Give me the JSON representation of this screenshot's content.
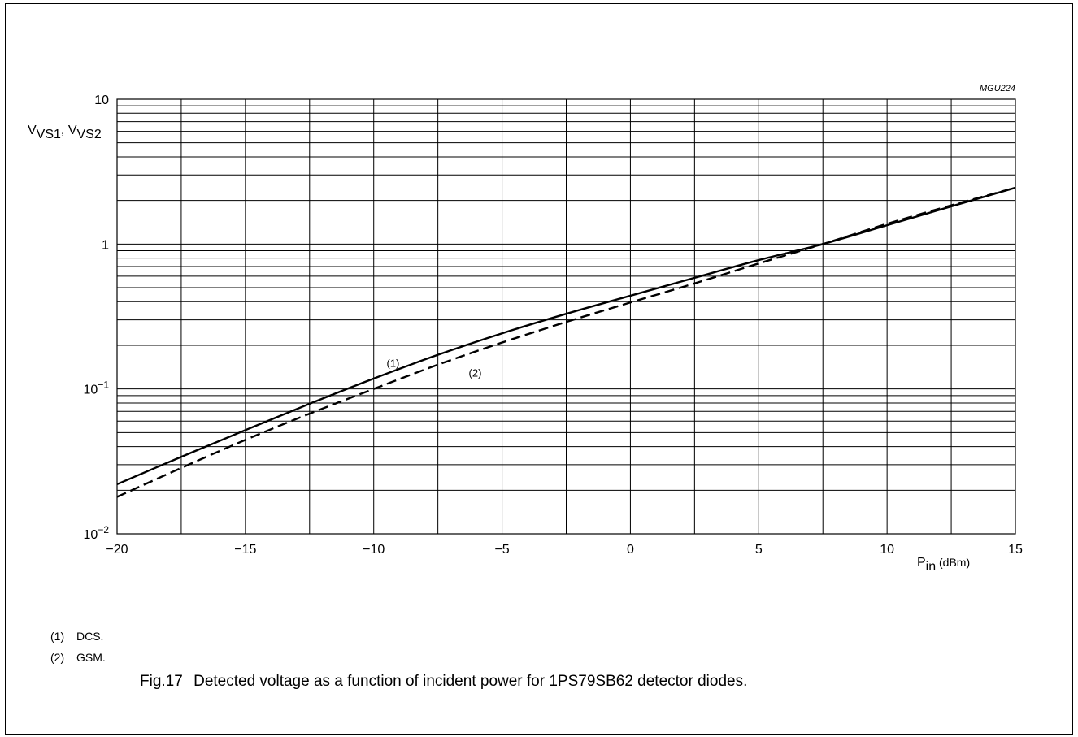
{
  "chart_data": {
    "type": "line",
    "code": "MGU224",
    "x_axis": {
      "label_main": "P",
      "label_sub": "in",
      "label_unit": " (dBm)",
      "range": [
        -20,
        15
      ],
      "ticks": [
        -20,
        -15,
        -10,
        -5,
        0,
        5,
        10,
        15
      ],
      "tick_labels": [
        "−20",
        "−15",
        "−10",
        "−5",
        "0",
        "5",
        "10",
        "15"
      ]
    },
    "y_axis": {
      "label_main_1": "V",
      "label_sub_1": "VS1",
      "label_sep": ", ",
      "label_main_2": "V",
      "label_sub_2": "VS2",
      "scale": "log",
      "range": [
        0.01,
        10
      ],
      "tick_labels": [
        {
          "value": 10,
          "base": "10",
          "exp": ""
        },
        {
          "value": 1,
          "base": "1",
          "exp": ""
        },
        {
          "value": 0.1,
          "base": "10",
          "exp": "−1"
        },
        {
          "value": 0.01,
          "base": "10",
          "exp": "−2"
        }
      ]
    },
    "grid": true,
    "series": [
      {
        "name": "(1)",
        "style": "solid",
        "x": [
          -20,
          -17.5,
          -15,
          -12.5,
          -10,
          -7.5,
          -5,
          -2.5,
          0,
          2.5,
          5,
          7.5,
          10,
          12.5,
          15
        ],
        "y": [
          0.022,
          0.034,
          0.052,
          0.079,
          0.118,
          0.172,
          0.242,
          0.33,
          0.44,
          0.585,
          0.775,
          1.0,
          1.35,
          1.82,
          2.45
        ]
      },
      {
        "name": "(2)",
        "style": "dashed",
        "x": [
          -20,
          -17.5,
          -15,
          -12.5,
          -10,
          -7.5,
          -5,
          -2.5,
          0,
          2.5,
          5,
          7.5,
          10,
          12.5,
          15
        ],
        "y": [
          0.018,
          0.0285,
          0.0445,
          0.0675,
          0.1,
          0.147,
          0.209,
          0.29,
          0.395,
          0.535,
          0.735,
          1.0,
          1.38,
          1.85,
          2.45
        ]
      }
    ],
    "annotations": [
      {
        "text": "(1)",
        "x": -9.5,
        "y": 0.142
      },
      {
        "text": "(2)",
        "x": -6.3,
        "y": 0.122
      }
    ]
  },
  "notes": [
    {
      "num": "(1)",
      "text": "DCS."
    },
    {
      "num": "(2)",
      "text": "GSM."
    }
  ],
  "caption": {
    "fig": "Fig.17",
    "text": "Detected voltage as a function of incident power for 1PS79SB62 detector diodes."
  }
}
